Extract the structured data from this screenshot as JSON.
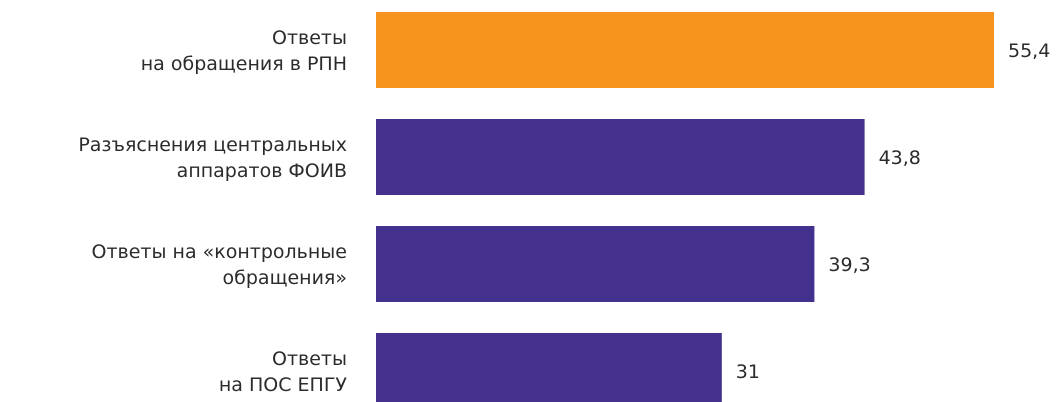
{
  "chart_data": {
    "type": "bar",
    "orientation": "horizontal",
    "categories": [
      [
        "Ответы",
        "на обращения в РПН"
      ],
      [
        "Разъяснения центральных",
        "аппаратов ФОИВ"
      ],
      [
        "Ответы на «контрольные",
        "обращения»"
      ],
      [
        "Ответы",
        "на ПОС ЕПГУ"
      ]
    ],
    "values": [
      55.4,
      43.8,
      39.3,
      31
    ],
    "value_labels": [
      "55,4",
      "43,8",
      "39,3",
      "31"
    ],
    "colors": [
      "#F7941D",
      "#44318D",
      "#44318D",
      "#44318D"
    ],
    "title": "",
    "xlabel": "",
    "ylabel": "",
    "xlim": [
      0,
      55.4
    ],
    "grid": false,
    "legend": "none"
  }
}
